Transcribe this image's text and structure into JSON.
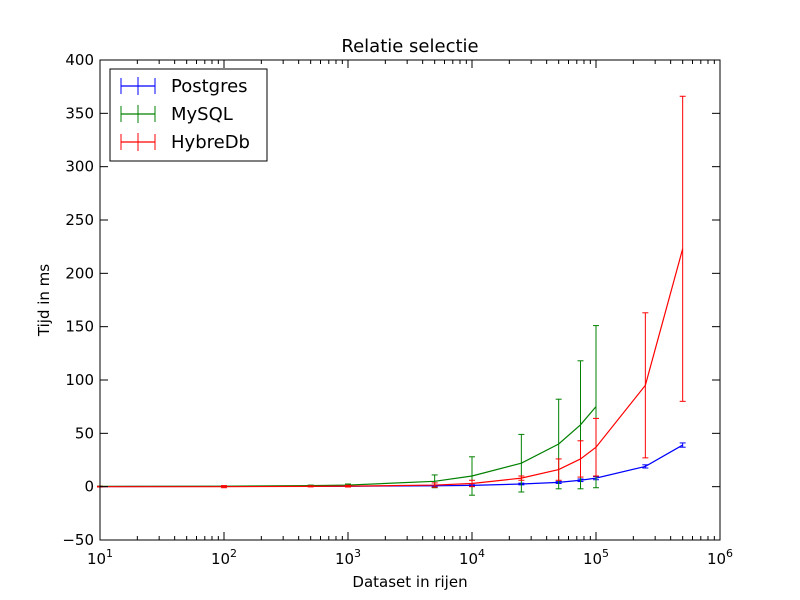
{
  "chart_data": {
    "type": "line",
    "title": "Relatie selectie",
    "xlabel": "Dataset in rijen",
    "ylabel": "Tijd in ms",
    "xscale": "log",
    "xlim": [
      10,
      1000000
    ],
    "ylim": [
      -50,
      400
    ],
    "x_ticks": [
      {
        "value": 10,
        "base": "10",
        "exp": "1"
      },
      {
        "value": 100,
        "base": "10",
        "exp": "2"
      },
      {
        "value": 1000,
        "base": "10",
        "exp": "3"
      },
      {
        "value": 10000,
        "base": "10",
        "exp": "4"
      },
      {
        "value": 100000,
        "base": "10",
        "exp": "5"
      },
      {
        "value": 1000000,
        "base": "10",
        "exp": "6"
      }
    ],
    "y_ticks": [
      -50,
      0,
      50,
      100,
      150,
      200,
      250,
      300,
      350,
      400
    ],
    "y_tick_labels": [
      "−50",
      "0",
      "50",
      "100",
      "150",
      "200",
      "250",
      "300",
      "350",
      "400"
    ],
    "grid": false,
    "legend_position": "top-left",
    "series": [
      {
        "name": "Postgres",
        "color": "#0000ff",
        "points": [
          {
            "x": 10,
            "y": 0.1,
            "err": 0.1
          },
          {
            "x": 100,
            "y": 0.2,
            "err": 0.1
          },
          {
            "x": 500,
            "y": 0.3,
            "err": 0.2
          },
          {
            "x": 1000,
            "y": 0.4,
            "err": 0.3
          },
          {
            "x": 5000,
            "y": 0.8,
            "err": 0.5
          },
          {
            "x": 10000,
            "y": 1.2,
            "err": 0.6
          },
          {
            "x": 25000,
            "y": 2.5,
            "err": 0.8
          },
          {
            "x": 50000,
            "y": 4,
            "err": 1
          },
          {
            "x": 75000,
            "y": 6,
            "err": 1.2
          },
          {
            "x": 100000,
            "y": 8,
            "err": 1.5
          },
          {
            "x": 250000,
            "y": 19,
            "err": 1.5
          },
          {
            "x": 500000,
            "y": 39,
            "err": 2
          }
        ]
      },
      {
        "name": "MySQL",
        "color": "#008000",
        "points": [
          {
            "x": 10,
            "y": 0.3,
            "err": 0.2
          },
          {
            "x": 100,
            "y": 0.4,
            "err": 0.3
          },
          {
            "x": 500,
            "y": 1,
            "err": 0.5
          },
          {
            "x": 1000,
            "y": 1.5,
            "err": 1
          },
          {
            "x": 5000,
            "y": 5,
            "err": 6
          },
          {
            "x": 10000,
            "y": 10,
            "err": 18
          },
          {
            "x": 25000,
            "y": 22,
            "err": 27
          },
          {
            "x": 50000,
            "y": 40,
            "err": 42
          },
          {
            "x": 75000,
            "y": 58,
            "err": 60
          },
          {
            "x": 100000,
            "y": 75,
            "err": 76
          }
        ]
      },
      {
        "name": "HybreDb",
        "color": "#ff0000",
        "points": [
          {
            "x": 10,
            "y": 0,
            "err": 0.3
          },
          {
            "x": 100,
            "y": 0,
            "err": 1
          },
          {
            "x": 500,
            "y": 0.3,
            "err": 0.5
          },
          {
            "x": 1000,
            "y": 0.5,
            "err": 0.8
          },
          {
            "x": 5000,
            "y": 1.5,
            "err": 2
          },
          {
            "x": 10000,
            "y": 3,
            "err": 3
          },
          {
            "x": 25000,
            "y": 8,
            "err": 2
          },
          {
            "x": 50000,
            "y": 16,
            "err": 10
          },
          {
            "x": 75000,
            "y": 26,
            "err": 17
          },
          {
            "x": 100000,
            "y": 37,
            "err": 27
          },
          {
            "x": 250000,
            "y": 95,
            "err": 68
          },
          {
            "x": 500000,
            "y": 223,
            "err": 143
          }
        ]
      }
    ]
  }
}
